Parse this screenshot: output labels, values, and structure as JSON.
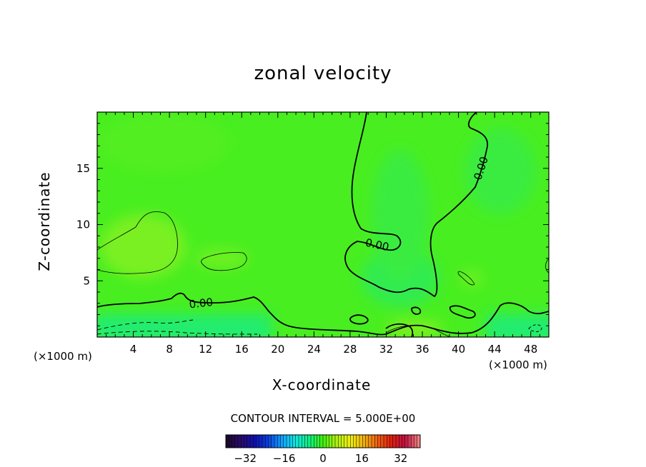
{
  "chart_data": {
    "type": "heatmap",
    "title": "zonal velocity",
    "xlabel": "X-coordinate",
    "ylabel": "Z-coordinate",
    "x_unit_left": "(×1000 m)",
    "x_unit_right": "(×1000 m)",
    "xlim": [
      0,
      50
    ],
    "ylim": [
      0,
      20
    ],
    "x_ticks": [
      4,
      8,
      12,
      16,
      20,
      24,
      28,
      32,
      36,
      40,
      44,
      48
    ],
    "y_ticks": [
      5,
      10,
      15
    ],
    "contour_interval_text": "CONTOUR INTERVAL = 5.000E+00",
    "contour_labels": [
      {
        "text": "0.00",
        "x": 11.5,
        "z": 3.0
      },
      {
        "text": "0.00",
        "x": 31.0,
        "z": 8.2
      },
      {
        "text": "0.00",
        "x": 42.5,
        "z": 15.0
      }
    ],
    "colorbar": {
      "range": [
        -40,
        40
      ],
      "tick_values": [
        -32,
        -16,
        0,
        16,
        32
      ],
      "tick_labels": [
        "−32",
        "−16",
        "0",
        "16",
        "32"
      ],
      "colors": [
        "#1a0a2e",
        "#2b0a6e",
        "#1010b0",
        "#0a40e0",
        "#10a0ff",
        "#10e8e0",
        "#10f080",
        "#40f010",
        "#b0f010",
        "#f0f010",
        "#f0b010",
        "#f06010",
        "#e02010",
        "#c01040",
        "#f08080"
      ]
    },
    "field_colors": {
      "background": "#48ee20",
      "weak_positive": "#7af020",
      "weak_negative": "#20ec60",
      "negative": "#10e8a0"
    }
  }
}
